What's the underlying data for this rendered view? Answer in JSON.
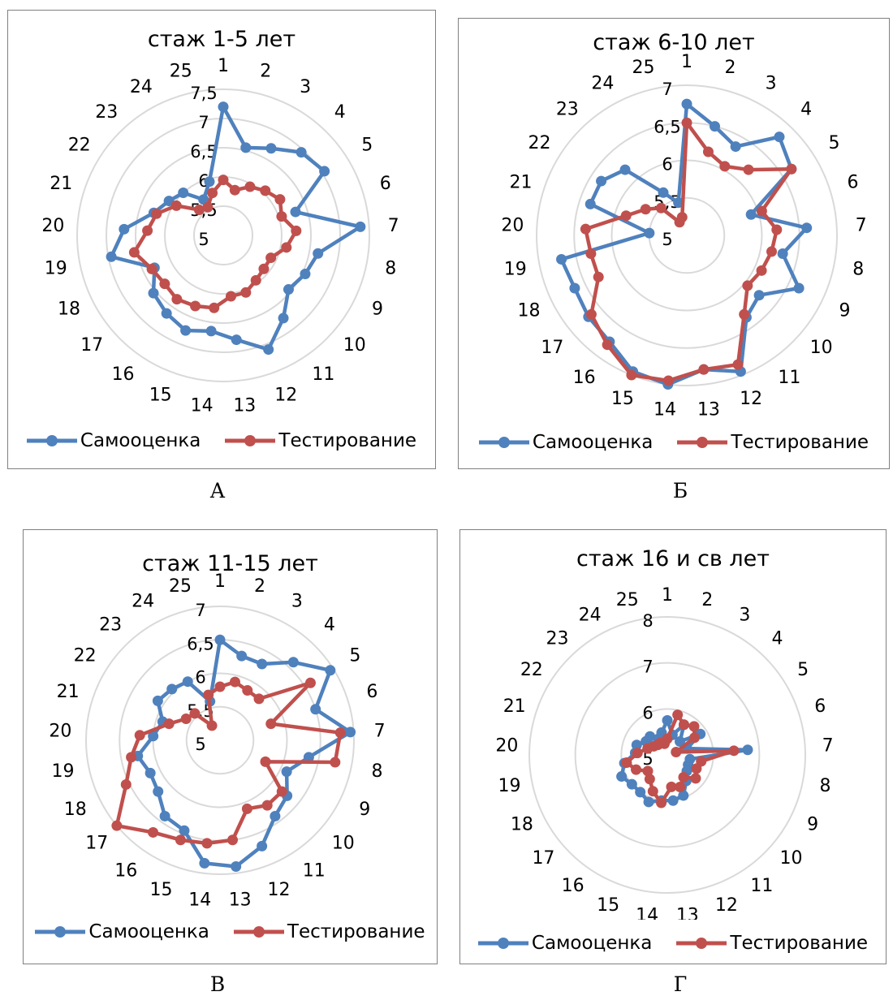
{
  "chart_data": [
    {
      "type": "radar",
      "title": "стаж 1-5 лет",
      "caption": "А",
      "categories": [
        "1",
        "2",
        "3",
        "4",
        "5",
        "6",
        "7",
        "8",
        "9",
        "10",
        "11",
        "12",
        "13",
        "14",
        "15",
        "16",
        "17",
        "18",
        "19",
        "20",
        "21",
        "22",
        "23",
        "24",
        "25"
      ],
      "rlim": [
        5,
        7.5
      ],
      "radial_ticks": [
        "5",
        "5,5",
        "6",
        "6,5",
        "7",
        "7,5"
      ],
      "radial_tick_values": [
        5,
        5.5,
        6,
        6.5,
        7,
        7.5
      ],
      "series": [
        {
          "name": "Самооценка",
          "color": "#4F81BD",
          "values": [
            7.2,
            6.55,
            6.7,
            6.95,
            7.05,
            6.3,
            7.35,
            6.65,
            6.55,
            6.45,
            6.75,
            7.1,
            6.8,
            6.65,
            6.75,
            6.65,
            6.55,
            6.3,
            6.95,
            6.7,
            6.25,
            6.1,
            6.0,
            5.7,
            5.95
          ]
        },
        {
          "name": "Тестирование",
          "color": "#C0504D",
          "values": [
            5.95,
            5.8,
            5.95,
            6.05,
            6.15,
            6.05,
            6.25,
            6.1,
            5.9,
            5.9,
            5.95,
            6.05,
            6.05,
            6.25,
            6.3,
            6.35,
            6.3,
            6.35,
            6.55,
            6.3,
            6.2,
            5.95,
            5.6,
            5.55,
            5.75
          ]
        }
      ]
    },
    {
      "type": "radar",
      "title": "стаж 6-10 лет",
      "caption": "Б",
      "categories": [
        "1",
        "2",
        "3",
        "4",
        "5",
        "6",
        "7",
        "8",
        "9",
        "10",
        "11",
        "12",
        "13",
        "14",
        "15",
        "16",
        "17",
        "18",
        "19",
        "20",
        "21",
        "22",
        "23",
        "24",
        "25"
      ],
      "rlim": [
        5,
        7
      ],
      "radial_ticks": [
        "5",
        "5,5",
        "6",
        "6,5",
        "7"
      ],
      "radial_tick_values": [
        5,
        5.5,
        6,
        6.5,
        7
      ],
      "series": [
        {
          "name": "Самооценка",
          "color": "#4F81BD",
          "values": [
            6.75,
            6.5,
            6.35,
            6.8,
            6.65,
            5.9,
            6.6,
            6.3,
            6.65,
            6.25,
            6.35,
            6.95,
            6.8,
            7.0,
            6.95,
            6.75,
            6.7,
            6.65,
            6.7,
            5.5,
            6.35,
            6.35,
            6.2,
            5.65,
            5.45
          ]
        },
        {
          "name": "Тестирование",
          "color": "#C0504D",
          "values": [
            6.5,
            6.15,
            6.05,
            6.2,
            6.65,
            6.05,
            6.2,
            6.15,
            6.1,
            6.05,
            6.3,
            6.85,
            6.8,
            6.95,
            7.0,
            6.8,
            6.65,
            6.3,
            6.3,
            6.35,
            5.85,
            5.65,
            5.5,
            5.2,
            5.25
          ]
        }
      ]
    },
    {
      "type": "radar",
      "title": "стаж 11-15 лет",
      "caption": "В",
      "categories": [
        "1",
        "2",
        "3",
        "4",
        "5",
        "6",
        "7",
        "8",
        "9",
        "10",
        "11",
        "12",
        "13",
        "14",
        "15",
        "16",
        "17",
        "18",
        "19",
        "20",
        "21",
        "22",
        "23",
        "24",
        "25"
      ],
      "rlim": [
        5,
        7
      ],
      "radial_ticks": [
        "5",
        "5,5",
        "6",
        "6,5",
        "7"
      ],
      "radial_tick_values": [
        5,
        5.5,
        6,
        6.5,
        7
      ],
      "series": [
        {
          "name": "Самооценка",
          "color": "#4F81BD",
          "values": [
            6.5,
            6.3,
            6.3,
            6.6,
            6.95,
            6.5,
            6.95,
            6.35,
            6.1,
            6.3,
            6.4,
            6.7,
            6.9,
            6.85,
            6.45,
            6.4,
            6.2,
            6.15,
            6.25,
            6.0,
            5.9,
            6.1,
            6.05,
            6.0,
            5.6
          ]
        },
        {
          "name": "Тестирование",
          "color": "#C0504D",
          "values": [
            5.8,
            5.9,
            5.85,
            5.85,
            6.6,
            5.8,
            6.8,
            6.75,
            5.75,
            6.2,
            6.2,
            6.1,
            6.5,
            6.55,
            6.6,
            6.7,
            7.0,
            6.55,
            6.35,
            6.2,
            5.8,
            5.6,
            5.55,
            5.25,
            5.7
          ]
        }
      ]
    },
    {
      "type": "radar",
      "title": "стаж 16 и св лет",
      "caption": "Г",
      "categories": [
        "1",
        "2",
        "3",
        "4",
        "5",
        "6",
        "7",
        "8",
        "9",
        "10",
        "11",
        "12",
        "13",
        "14",
        "15",
        "16",
        "17",
        "18",
        "19",
        "20",
        "21",
        "22",
        "23",
        "24",
        "25"
      ],
      "rlim": [
        5,
        8
      ],
      "radial_ticks": [
        "5",
        "6",
        "7",
        "8"
      ],
      "radial_tick_values": [
        5,
        6,
        7,
        8
      ],
      "series": [
        {
          "name": "Самооценка",
          "color": "#4F81BD",
          "values": [
            5.75,
            5.45,
            5.75,
            5.4,
            5.85,
            5.45,
            6.75,
            5.5,
            5.5,
            5.55,
            5.7,
            5.95,
            6.0,
            6.0,
            6.1,
            6.0,
            6.0,
            6.1,
            5.95,
            5.7,
            5.7,
            5.55,
            5.55,
            5.4,
            5.5
          ]
        },
        {
          "name": "Тестирование",
          "color": "#C0504D",
          "values": [
            5.35,
            5.9,
            5.75,
            5.85,
            5.7,
            5.2,
            6.45,
            5.75,
            5.7,
            5.8,
            5.6,
            5.75,
            5.7,
            6.05,
            5.85,
            5.65,
            5.55,
            5.75,
            5.9,
            5.65,
            5.45,
            5.35,
            5.3,
            5.3,
            5.25
          ]
        }
      ]
    }
  ]
}
